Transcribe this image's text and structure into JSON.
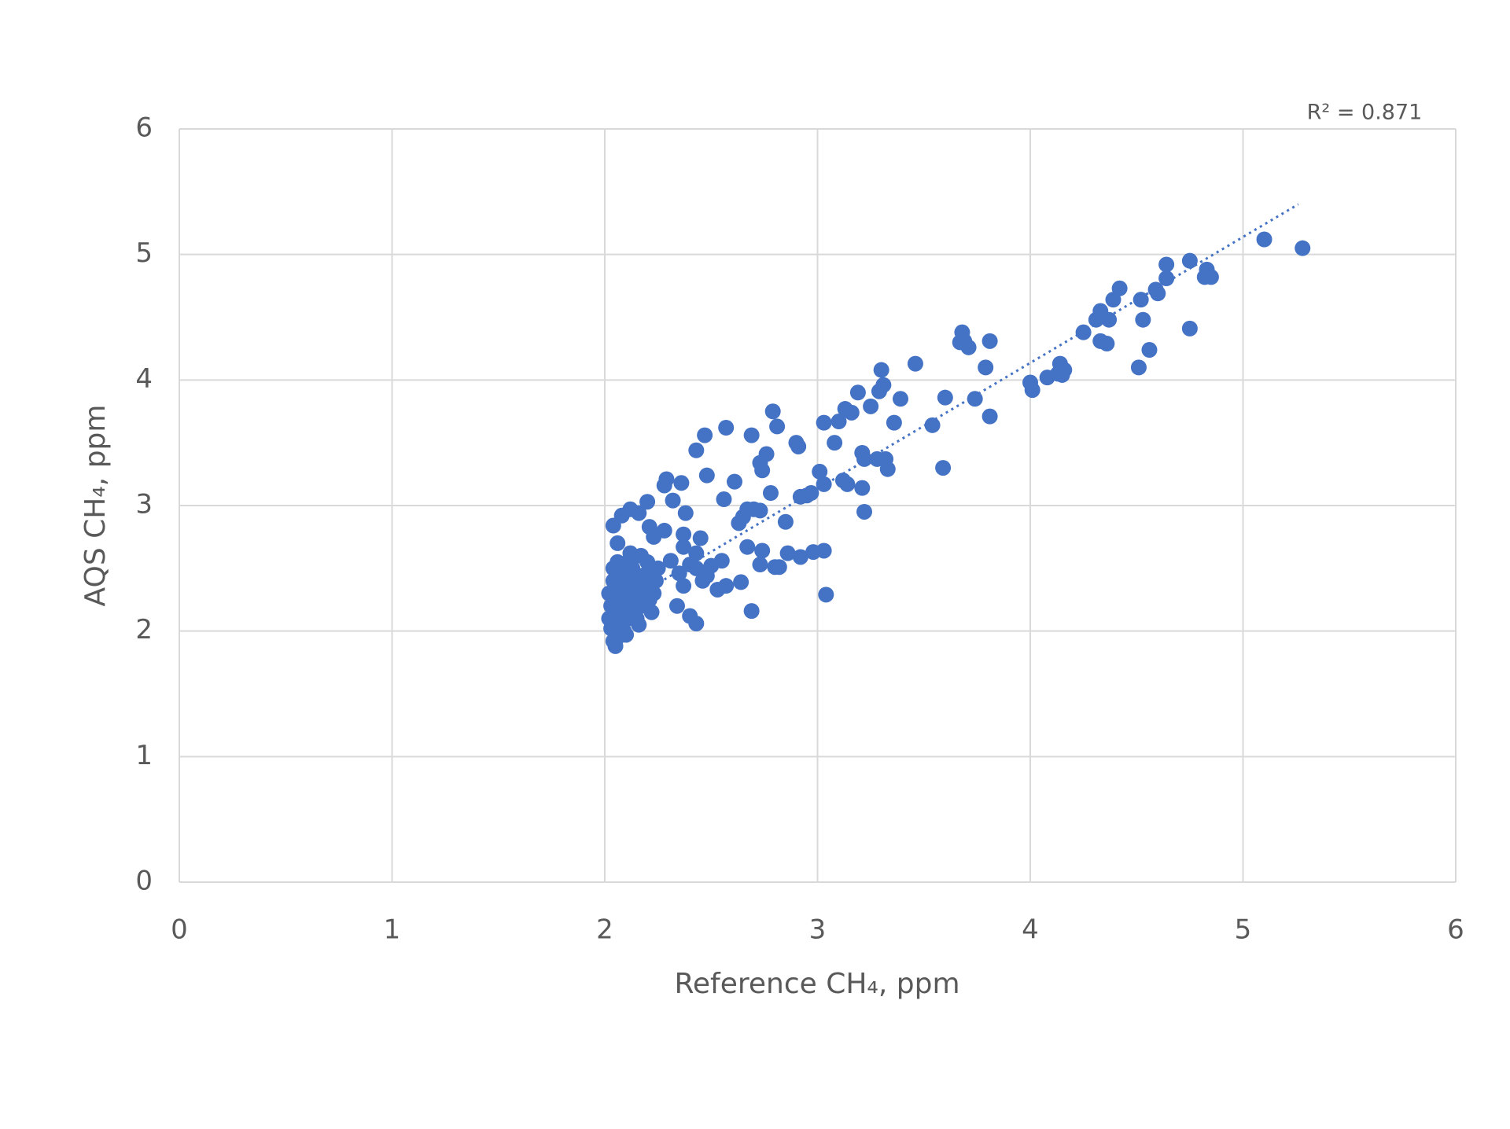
{
  "chart_data": {
    "type": "scatter",
    "x_label": "Reference CH₄, ppm",
    "y_label": "AQS CH₄, ppm",
    "annotation": "R² = 0.871",
    "color": "#4472c4",
    "grid": true,
    "xlim": [
      0,
      6
    ],
    "ylim": [
      0,
      6
    ],
    "xticks": [
      0,
      1,
      2,
      3,
      4,
      5,
      6
    ],
    "yticks": [
      0,
      1,
      2,
      3,
      4,
      5,
      6
    ],
    "x": [
      5.28,
      5.1,
      4.75,
      4.64,
      4.83,
      4.85,
      4.82,
      4.64,
      4.6,
      4.59,
      4.52,
      4.42,
      4.39,
      4.53,
      4.33,
      4.31,
      4.37,
      4.25,
      4.33,
      4.36,
      4.75,
      4.56,
      4.51,
      4.14,
      4.16,
      4.13,
      4.15,
      4.08,
      4.0,
      4.01,
      3.68,
      3.69,
      3.71,
      3.67,
      3.81,
      3.79,
      3.74,
      3.6,
      3.81,
      3.54,
      3.59,
      3.46,
      3.3,
      3.31,
      3.29,
      3.39,
      3.19,
      3.13,
      3.16,
      3.36,
      3.25,
      3.1,
      3.03,
      3.08,
      2.9,
      2.91,
      2.79,
      2.81,
      2.57,
      2.47,
      2.43,
      2.69,
      2.76,
      2.73,
      2.74,
      3.21,
      3.22,
      3.28,
      3.32,
      3.33,
      3.01,
      3.03,
      3.12,
      3.14,
      3.21,
      3.22,
      2.97,
      2.92,
      2.95,
      2.78,
      2.61,
      2.56,
      2.48,
      2.73,
      2.7,
      2.67,
      2.65,
      2.63,
      2.85,
      2.74,
      2.86,
      2.92,
      2.98,
      3.03,
      2.67,
      2.73,
      2.8,
      2.82,
      3.04,
      2.69,
      2.64,
      2.57,
      2.53,
      2.55,
      2.43,
      2.4,
      2.43,
      2.45,
      2.37,
      2.37,
      2.38,
      2.36,
      2.29,
      2.28,
      2.32,
      2.2,
      2.16,
      2.12,
      2.08,
      2.04,
      2.28,
      2.23,
      2.21,
      2.31,
      2.35,
      2.37,
      2.34,
      2.4,
      2.43,
      2.46,
      2.48,
      2.5,
      2.03,
      2.05,
      2.04,
      2.06,
      2.08,
      2.02,
      2.03,
      2.02,
      2.04,
      2.05,
      2.06,
      2.07,
      2.08,
      2.09,
      2.1,
      2.11,
      2.12,
      2.1,
      2.09,
      2.08,
      2.07,
      2.11,
      2.13,
      2.14,
      2.15,
      2.13,
      2.15,
      2.16,
      2.17,
      2.18,
      2.19,
      2.2,
      2.21,
      2.22,
      2.23,
      2.24,
      2.25,
      2.17,
      2.12,
      2.06,
      2.04,
      2.09,
      2.03,
      2.06,
      2.05
    ],
    "y": [
      5.05,
      5.12,
      4.95,
      4.92,
      4.88,
      4.82,
      4.82,
      4.81,
      4.69,
      4.72,
      4.64,
      4.73,
      4.64,
      4.48,
      4.55,
      4.48,
      4.48,
      4.38,
      4.31,
      4.29,
      4.41,
      4.24,
      4.1,
      4.13,
      4.08,
      4.05,
      4.04,
      4.02,
      3.98,
      3.92,
      4.38,
      4.31,
      4.26,
      4.3,
      4.31,
      4.1,
      3.85,
      3.86,
      3.71,
      3.64,
      3.3,
      4.13,
      4.08,
      3.96,
      3.91,
      3.85,
      3.9,
      3.77,
      3.74,
      3.66,
      3.79,
      3.67,
      3.66,
      3.5,
      3.5,
      3.47,
      3.75,
      3.63,
      3.62,
      3.56,
      3.44,
      3.56,
      3.41,
      3.34,
      3.28,
      3.42,
      3.37,
      3.37,
      3.37,
      3.29,
      3.27,
      3.17,
      3.2,
      3.17,
      3.14,
      2.95,
      3.1,
      3.07,
      3.08,
      3.1,
      3.19,
      3.05,
      3.24,
      2.96,
      2.97,
      2.97,
      2.91,
      2.86,
      2.87,
      2.64,
      2.62,
      2.59,
      2.63,
      2.64,
      2.67,
      2.53,
      2.51,
      2.51,
      2.29,
      2.16,
      2.39,
      2.36,
      2.33,
      2.56,
      2.5,
      2.53,
      2.62,
      2.74,
      2.77,
      2.67,
      2.94,
      3.18,
      3.21,
      3.16,
      3.04,
      3.03,
      2.94,
      2.97,
      2.92,
      2.84,
      2.8,
      2.75,
      2.83,
      2.56,
      2.46,
      2.36,
      2.2,
      2.12,
      2.06,
      2.4,
      2.44,
      2.52,
      2.02,
      1.88,
      1.92,
      1.95,
      1.98,
      2.1,
      2.2,
      2.3,
      2.4,
      2.35,
      2.28,
      2.15,
      2.05,
      2.0,
      1.97,
      2.1,
      2.2,
      2.3,
      2.4,
      2.5,
      2.45,
      2.55,
      2.5,
      2.4,
      2.3,
      2.15,
      2.1,
      2.05,
      2.2,
      2.35,
      2.45,
      2.55,
      2.25,
      2.15,
      2.3,
      2.4,
      2.5,
      2.6,
      2.62,
      2.55,
      2.5,
      2.2,
      2.08,
      2.7,
      2.1
    ],
    "trendline": {
      "x": [
        2.0,
        5.26
      ],
      "y": [
        2.13,
        5.4
      ],
      "style": "dotted",
      "color": "#4472c4"
    }
  }
}
